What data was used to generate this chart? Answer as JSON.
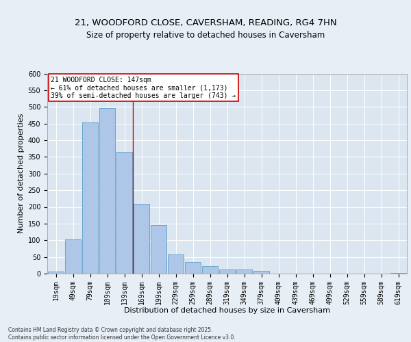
{
  "title1": "21, WOODFORD CLOSE, CAVERSHAM, READING, RG4 7HN",
  "title2": "Size of property relative to detached houses in Caversham",
  "xlabel": "Distribution of detached houses by size in Caversham",
  "ylabel": "Number of detached properties",
  "bar_color": "#aec6e8",
  "bar_edge_color": "#5a9ec8",
  "categories": [
    "19sqm",
    "49sqm",
    "79sqm",
    "109sqm",
    "139sqm",
    "169sqm",
    "199sqm",
    "229sqm",
    "259sqm",
    "289sqm",
    "319sqm",
    "349sqm",
    "379sqm",
    "409sqm",
    "439sqm",
    "469sqm",
    "499sqm",
    "529sqm",
    "559sqm",
    "589sqm",
    "619sqm"
  ],
  "values": [
    7,
    103,
    453,
    496,
    365,
    210,
    146,
    58,
    35,
    23,
    13,
    13,
    8,
    0,
    0,
    0,
    0,
    0,
    0,
    0,
    2
  ],
  "vline_x": 4.5,
  "vline_color": "#cc0000",
  "annotation_line1": "21 WOODFORD CLOSE: 147sqm",
  "annotation_line2": "← 61% of detached houses are smaller (1,173)",
  "annotation_line3": "39% of semi-detached houses are larger (743) →",
  "annotation_box_color": "#ffffff",
  "annotation_box_edge": "#cc0000",
  "ylim": [
    0,
    600
  ],
  "yticks": [
    0,
    50,
    100,
    150,
    200,
    250,
    300,
    350,
    400,
    450,
    500,
    550,
    600
  ],
  "bg_color": "#e8eef5",
  "plot_bg_color": "#dce6f0",
  "footer": "Contains HM Land Registry data © Crown copyright and database right 2025.\nContains public sector information licensed under the Open Government Licence v3.0.",
  "grid_color": "#ffffff",
  "title1_fontsize": 9.5,
  "title2_fontsize": 8.5,
  "xlabel_fontsize": 8,
  "ylabel_fontsize": 8,
  "tick_fontsize": 7,
  "annot_fontsize": 7,
  "footer_fontsize": 5.5
}
